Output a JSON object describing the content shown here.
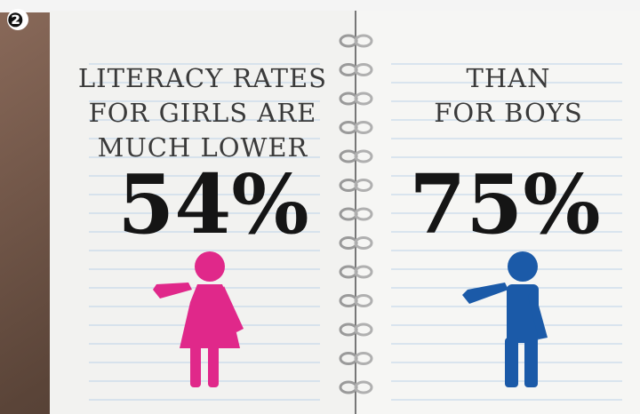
{
  "badge": "❷",
  "left": {
    "caption": [
      "LITERACY RATES",
      "FOR GIRLS ARE",
      "MUCH LOWER"
    ],
    "stat": "54%"
  },
  "right": {
    "caption": [
      "THAN",
      "FOR BOYS"
    ],
    "stat": "75%"
  }
}
